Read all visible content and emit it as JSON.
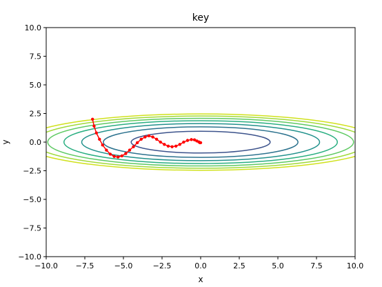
{
  "chart_data": {
    "type": "line",
    "title": "key",
    "xlabel": "x",
    "ylabel": "y",
    "xlim": [
      -10.0,
      10.0
    ],
    "ylim": [
      -10.0,
      10.0
    ],
    "xticks": [
      "−10.0",
      "−7.5",
      "−5.0",
      "−2.5",
      "0.0",
      "2.5",
      "5.0",
      "7.5",
      "10.0"
    ],
    "yticks": [
      "10.0",
      "7.5",
      "5.0",
      "2.5",
      "0.0",
      "−2.5",
      "−5.0",
      "−7.5",
      "−10.0"
    ],
    "grid": false,
    "contours": {
      "center": [
        0.0,
        0.0
      ],
      "semi_axes": [
        {
          "a": 4.5,
          "b": 0.95,
          "color": "#3b528b"
        },
        {
          "a": 6.3,
          "b": 1.33,
          "color": "#2c728e"
        },
        {
          "a": 7.7,
          "b": 1.62,
          "color": "#21918c"
        },
        {
          "a": 8.85,
          "b": 1.87,
          "color": "#28ae80"
        },
        {
          "a": 9.9,
          "b": 2.08,
          "color": "#5ec962"
        },
        {
          "a": 10.8,
          "b": 2.28,
          "color": "#a0da39"
        },
        {
          "a": 11.6,
          "b": 2.46,
          "color": "#d0e11c"
        }
      ]
    },
    "series": [
      {
        "color": "#ff0000",
        "points": [
          [
            -7.0,
            2.0
          ],
          [
            -6.9,
            1.4
          ],
          [
            -6.75,
            0.8
          ],
          [
            -6.55,
            0.25
          ],
          [
            -6.35,
            -0.25
          ],
          [
            -6.1,
            -0.7
          ],
          [
            -5.85,
            -1.05
          ],
          [
            -5.6,
            -1.25
          ],
          [
            -5.35,
            -1.3
          ],
          [
            -5.1,
            -1.2
          ],
          [
            -4.85,
            -1.0
          ],
          [
            -4.6,
            -0.7
          ],
          [
            -4.35,
            -0.4
          ],
          [
            -4.1,
            -0.05
          ],
          [
            -3.85,
            0.25
          ],
          [
            -3.6,
            0.45
          ],
          [
            -3.35,
            0.55
          ],
          [
            -3.1,
            0.45
          ],
          [
            -2.85,
            0.25
          ],
          [
            -2.6,
            0.0
          ],
          [
            -2.35,
            -0.2
          ],
          [
            -2.1,
            -0.35
          ],
          [
            -1.85,
            -0.4
          ],
          [
            -1.6,
            -0.35
          ],
          [
            -1.35,
            -0.2
          ],
          [
            -1.1,
            0.0
          ],
          [
            -0.85,
            0.15
          ],
          [
            -0.6,
            0.22
          ],
          [
            -0.4,
            0.2
          ],
          [
            -0.25,
            0.1
          ],
          [
            -0.12,
            0.02
          ],
          [
            -0.05,
            -0.05
          ],
          [
            0.0,
            -0.05
          ]
        ]
      }
    ],
    "colors": {
      "trajectory": "#ff0000",
      "axes": "#000000"
    }
  }
}
